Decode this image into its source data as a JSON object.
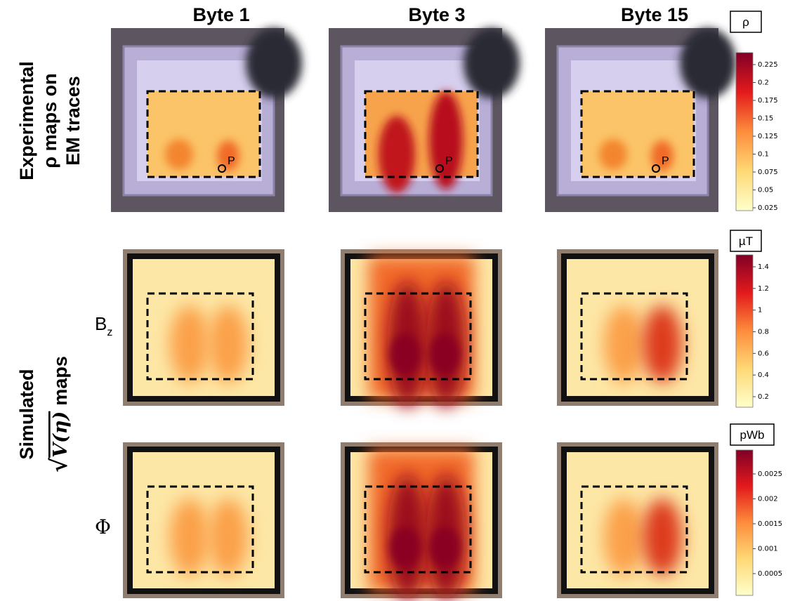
{
  "columns": [
    "Byte 1",
    "Byte 3",
    "Byte 15"
  ],
  "experimental_label": [
    "Experimental",
    "ρ maps on",
    "EM traces"
  ],
  "simulated_label": {
    "line1": "Simulated",
    "radical": "√",
    "argument": "V(η)",
    "suffix": "maps"
  },
  "row_labels": {
    "bz": {
      "base": "B",
      "subscript": "z"
    },
    "phi": "Φ"
  },
  "point_label": "P",
  "colorbars": [
    {
      "title": "ρ",
      "ticks": [
        0.025,
        0.05,
        0.075,
        0.1,
        0.125,
        0.15,
        0.175,
        0.2,
        0.225
      ]
    },
    {
      "title": "µT",
      "ticks": [
        0.2,
        0.4,
        0.6,
        0.8,
        1.0,
        1.2,
        1.4
      ]
    },
    {
      "title": "pWb",
      "ticks": [
        0.0005,
        0.001,
        0.0015,
        0.002,
        0.0025
      ]
    }
  ]
}
